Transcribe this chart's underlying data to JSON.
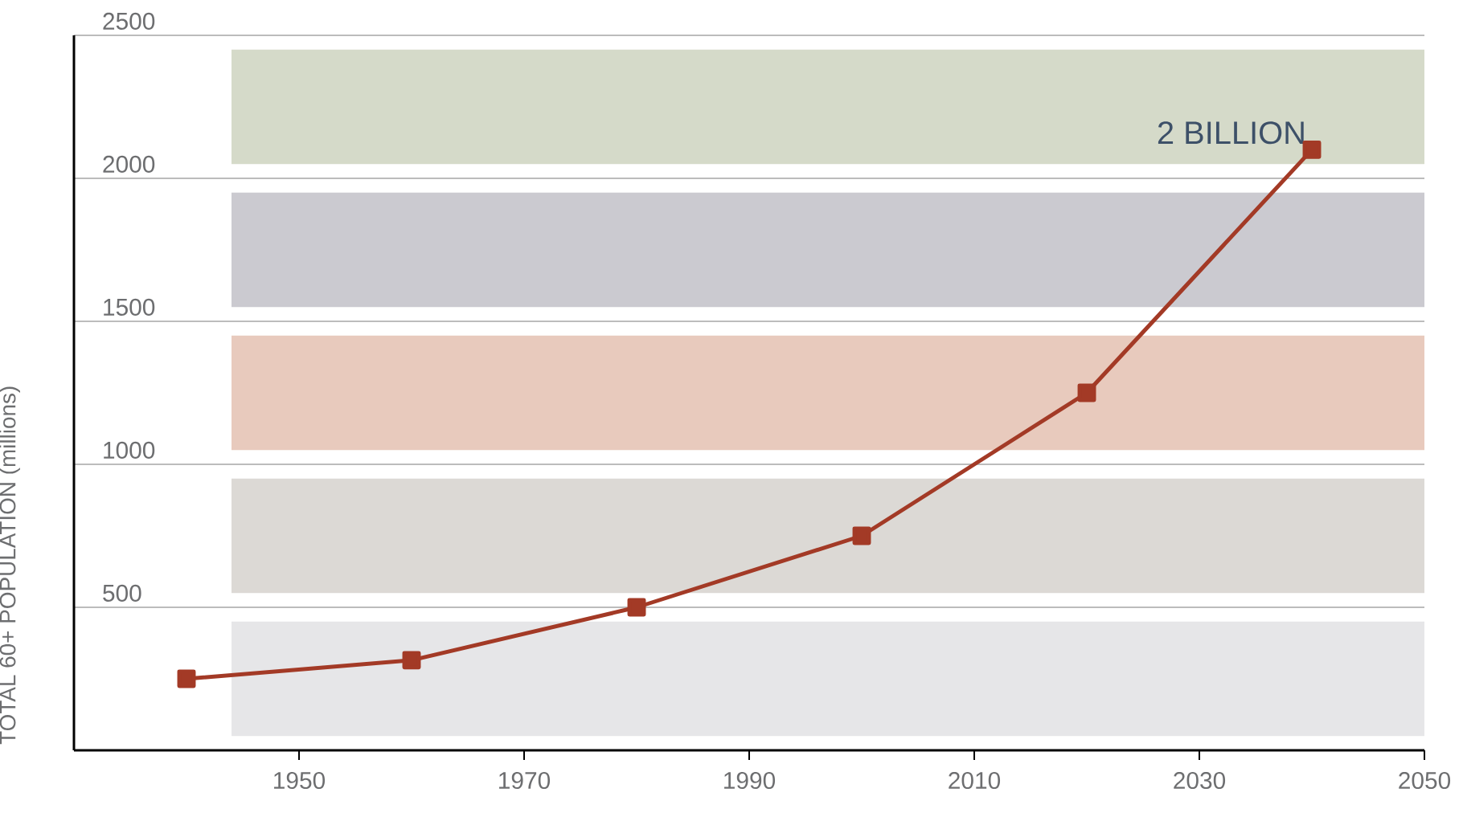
{
  "chart_data": {
    "type": "line",
    "ylabel": "TOTAL 60+ POPULATION (millions)",
    "x": [
      1940,
      1960,
      1980,
      2000,
      2020,
      2040
    ],
    "series": [
      {
        "color": "#a33a26",
        "values": [
          250,
          315,
          500,
          750,
          1250,
          2100
        ]
      }
    ],
    "xlim": [
      1930,
      2050
    ],
    "xticks": [
      1950,
      1970,
      1990,
      2010,
      2030,
      2050
    ],
    "ylim": [
      0,
      2500
    ],
    "yticks": [
      500,
      1000,
      1500,
      2000,
      2500
    ],
    "grid": "y",
    "marker": "square",
    "line_style": "solid",
    "bands": [
      {
        "axis": "y",
        "from": 50,
        "to": 450,
        "color": "#e6e6e8"
      },
      {
        "axis": "y",
        "from": 550,
        "to": 950,
        "color": "#dcd9d5"
      },
      {
        "axis": "y",
        "from": 1050,
        "to": 1450,
        "color": "#e8cabd"
      },
      {
        "axis": "y",
        "from": 1550,
        "to": 1950,
        "color": "#cbcad0"
      },
      {
        "axis": "y",
        "from": 2050,
        "to": 2450,
        "color": "#d5dac9"
      }
    ],
    "annotations": [
      {
        "text": "2 BILLION",
        "x": 2040,
        "y": 2100
      }
    ]
  }
}
